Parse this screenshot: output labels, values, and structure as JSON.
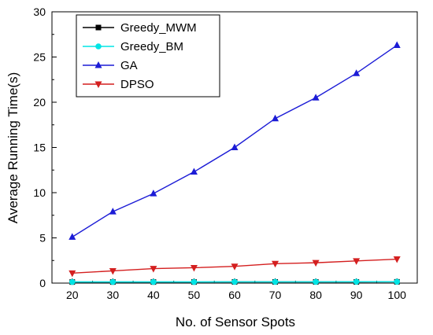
{
  "chart_data": {
    "type": "line",
    "xlabel": "No. of Sensor Spots",
    "ylabel": "Average Running Time(s)",
    "x": [
      20,
      30,
      40,
      50,
      60,
      70,
      80,
      90,
      100
    ],
    "xlim": [
      15,
      105
    ],
    "ylim": [
      0,
      30
    ],
    "xticks": [
      20,
      30,
      40,
      50,
      60,
      70,
      80,
      90,
      100
    ],
    "yticks": [
      0,
      5,
      10,
      15,
      20,
      25,
      30
    ],
    "grid": false,
    "legend_position": "top-left",
    "series": [
      {
        "name": "Greedy_MWM",
        "color": "#000000",
        "marker": "square",
        "values": [
          0.12,
          0.12,
          0.12,
          0.12,
          0.13,
          0.13,
          0.13,
          0.13,
          0.14
        ]
      },
      {
        "name": "Greedy_BM",
        "color": "#00e5e5",
        "marker": "circle",
        "values": [
          0.13,
          0.13,
          0.13,
          0.13,
          0.14,
          0.14,
          0.14,
          0.15,
          0.15
        ]
      },
      {
        "name": "GA",
        "color": "#1c1cd6",
        "marker": "triangle-up",
        "values": [
          5.1,
          7.9,
          9.9,
          12.3,
          15.0,
          18.2,
          20.5,
          23.2,
          26.3
        ]
      },
      {
        "name": "DPSO",
        "color": "#d41f1f",
        "marker": "triangle-down",
        "values": [
          1.1,
          1.35,
          1.6,
          1.7,
          1.85,
          2.15,
          2.25,
          2.45,
          2.65
        ]
      }
    ]
  }
}
